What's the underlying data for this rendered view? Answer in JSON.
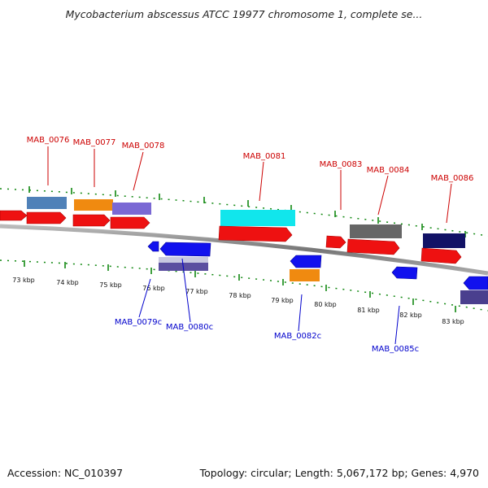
{
  "title": "Mycobacterium abscessus ATCC 19977 chromosome 1, complete se...",
  "footer": {
    "accession": "Accession: NC_010397",
    "summary": "Topology: circular; Length: 5,067,172 bp; Genes: 4,970"
  },
  "kbp_labels": [
    "73 kbp",
    "74 kbp",
    "75 kbp",
    "76 kbp",
    "77 kbp",
    "78 kbp",
    "79 kbp",
    "80 kbp",
    "81 kbp",
    "82 kbp",
    "83 kbp"
  ],
  "forward_genes": [
    "MAB_0076",
    "MAB_0077",
    "MAB_0078",
    "MAB_0081",
    "MAB_0083",
    "MAB_0084",
    "MAB_0086"
  ],
  "reverse_genes": [
    "MAB_0079c",
    "MAB_0080c",
    "MAB_0082c",
    "MAB_0085c"
  ],
  "colors": {
    "forward_label": "#cc0000",
    "reverse_label": "#0000cc",
    "cds": "#ee1111",
    "backbone": "#888888",
    "tick": "#118811"
  }
}
